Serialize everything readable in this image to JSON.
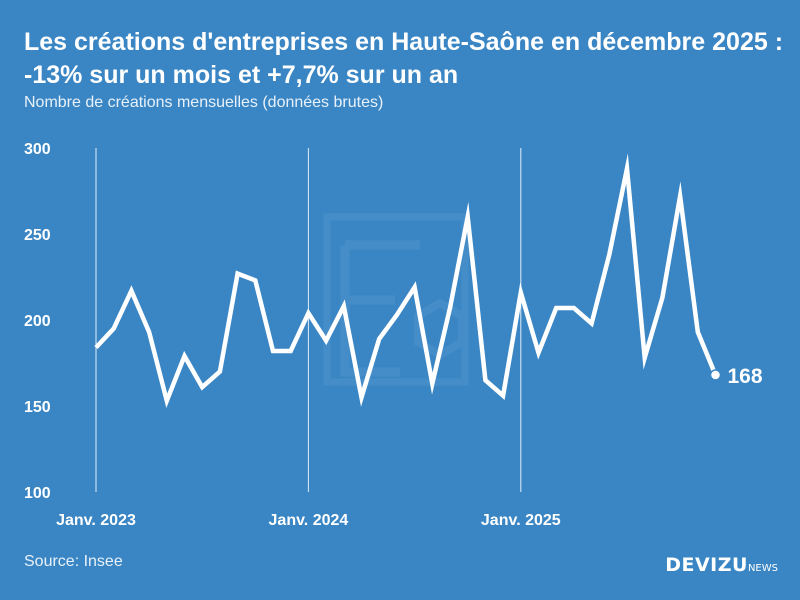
{
  "header": {
    "title": "Les créations d'entreprises en Haute-Saône en décembre 2025 : -13% sur un mois et +7,7% sur un an",
    "subtitle": "Nombre de créations mensuelles (données brutes)"
  },
  "footer": {
    "source": "Source: Insee",
    "brand": "DEVIZU",
    "brand_sub": "NEWS"
  },
  "colors": {
    "background": "#3a86c4",
    "line": "#ffffff",
    "watermark": "#5b9bd0"
  },
  "chart_data": {
    "type": "line",
    "title": "Les créations d'entreprises en Haute-Saône en décembre 2025 : -13% sur un mois et +7,7% sur un an",
    "subtitle": "Nombre de créations mensuelles (données brutes)",
    "ylim": [
      100,
      300
    ],
    "yticks": [
      100,
      150,
      200,
      250,
      300
    ],
    "xticks": [
      {
        "label": "Janv. 2023",
        "index": 0
      },
      {
        "label": "Janv. 2024",
        "index": 12
      },
      {
        "label": "Janv. 2025",
        "index": 24
      }
    ],
    "grid": "vertical lines at January",
    "x": [
      "2023-01",
      "2023-02",
      "2023-03",
      "2023-04",
      "2023-05",
      "2023-06",
      "2023-07",
      "2023-08",
      "2023-09",
      "2023-10",
      "2023-11",
      "2023-12",
      "2024-01",
      "2024-02",
      "2024-03",
      "2024-04",
      "2024-05",
      "2024-06",
      "2024-07",
      "2024-08",
      "2024-09",
      "2024-10",
      "2024-11",
      "2024-12",
      "2025-01",
      "2025-02",
      "2025-03",
      "2025-04",
      "2025-05",
      "2025-06",
      "2025-07",
      "2025-08",
      "2025-09",
      "2025-10",
      "2025-11",
      "2025-12"
    ],
    "values": [
      184,
      195,
      217,
      193,
      153,
      179,
      161,
      170,
      227,
      223,
      182,
      182,
      204,
      188,
      208,
      155,
      189,
      203,
      219,
      163,
      207,
      260,
      165,
      156,
      216,
      181,
      207,
      207,
      198,
      238,
      288,
      178,
      213,
      272,
      193,
      168
    ],
    "last_label": "168"
  }
}
